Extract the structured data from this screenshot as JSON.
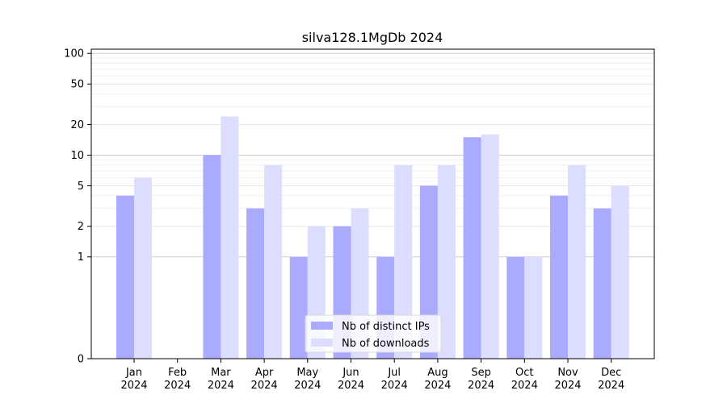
{
  "chart_data": {
    "type": "bar",
    "title": "silva128.1MgDb 2024",
    "xlabel": "",
    "ylabel": "",
    "y_scale": "symlog",
    "ylim": [
      0,
      110
    ],
    "y_ticks": [
      {
        "value": 0,
        "label": "0"
      },
      {
        "value": 1,
        "label": "1"
      },
      {
        "value": 2,
        "label": "2"
      },
      {
        "value": 5,
        "label": "5"
      },
      {
        "value": 10,
        "label": "10"
      },
      {
        "value": 20,
        "label": "20"
      },
      {
        "value": 50,
        "label": "50"
      },
      {
        "value": 100,
        "label": "100"
      }
    ],
    "categories": [
      {
        "month": "Jan",
        "year": "2024"
      },
      {
        "month": "Feb",
        "year": "2024"
      },
      {
        "month": "Mar",
        "year": "2024"
      },
      {
        "month": "Apr",
        "year": "2024"
      },
      {
        "month": "May",
        "year": "2024"
      },
      {
        "month": "Jun",
        "year": "2024"
      },
      {
        "month": "Jul",
        "year": "2024"
      },
      {
        "month": "Aug",
        "year": "2024"
      },
      {
        "month": "Sep",
        "year": "2024"
      },
      {
        "month": "Oct",
        "year": "2024"
      },
      {
        "month": "Nov",
        "year": "2024"
      },
      {
        "month": "Dec",
        "year": "2024"
      }
    ],
    "series": [
      {
        "name": "Nb of distinct IPs",
        "color": "#aaaaff",
        "values": [
          4,
          0,
          10,
          3,
          1,
          2,
          1,
          5,
          15,
          1,
          4,
          3
        ]
      },
      {
        "name": "Nb of downloads",
        "color": "#ddddff",
        "values": [
          6,
          0,
          24,
          8,
          2,
          3,
          8,
          8,
          16,
          1,
          8,
          5
        ]
      }
    ],
    "grid": true,
    "legend": "bottom-center"
  }
}
